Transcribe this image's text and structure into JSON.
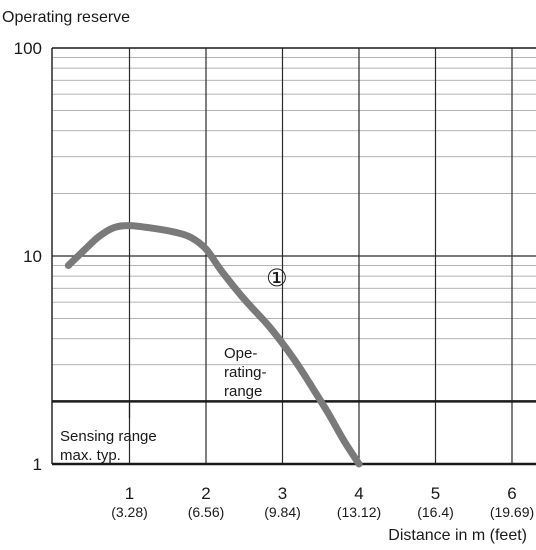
{
  "chart_data": {
    "type": "line",
    "title": "",
    "ylabel": "Operating reserve",
    "xlabel": "Distance in m (feet)",
    "y_scale": "log",
    "ylim": [
      1,
      100
    ],
    "xlim": [
      0,
      6
    ],
    "grid": true,
    "y_ticks": [
      {
        "value": 1,
        "label": "1"
      },
      {
        "value": 10,
        "label": "10"
      },
      {
        "value": 100,
        "label": "100"
      }
    ],
    "x_ticks": [
      {
        "value": 1,
        "label": "1",
        "sublabel": "(3.28)"
      },
      {
        "value": 2,
        "label": "2",
        "sublabel": "(6.56)"
      },
      {
        "value": 3,
        "label": "3",
        "sublabel": "(9.84)"
      },
      {
        "value": 4,
        "label": "4",
        "sublabel": "(13.12)"
      },
      {
        "value": 5,
        "label": "5",
        "sublabel": "(16.4)"
      },
      {
        "value": 6,
        "label": "6",
        "sublabel": "(19.69)"
      }
    ],
    "series": [
      {
        "marker": "①",
        "color": "#7a7a7a",
        "x": [
          0.2,
          0.4,
          0.6,
          0.8,
          1.0,
          1.3,
          1.6,
          1.8,
          2.0,
          2.2,
          2.5,
          2.8,
          3.0,
          3.2,
          3.4,
          3.6,
          3.8,
          4.0
        ],
        "y": [
          9.0,
          10.6,
          12.4,
          13.7,
          14.0,
          13.6,
          13.0,
          12.3,
          10.8,
          8.5,
          6.2,
          4.7,
          3.8,
          3.0,
          2.3,
          1.75,
          1.3,
          1.0
        ]
      }
    ],
    "threshold": {
      "value": 2,
      "color": "#1a1a1a"
    },
    "annotations": {
      "operating_range": [
        "Ope-",
        "rating-",
        "range"
      ],
      "sensing_range": [
        "Sensing range",
        "max. typ."
      ]
    }
  }
}
